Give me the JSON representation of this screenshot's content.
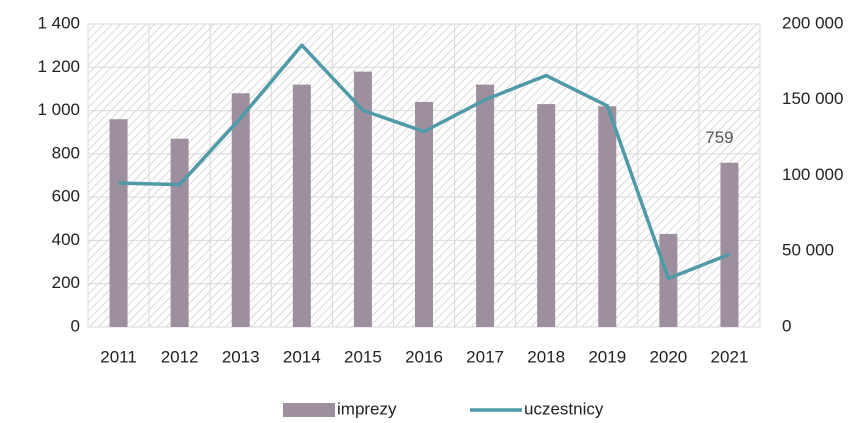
{
  "chart_data": {
    "type": "bar-line",
    "categories": [
      "2011",
      "2012",
      "2013",
      "2014",
      "2015",
      "2016",
      "2017",
      "2018",
      "2019",
      "2020",
      "2021"
    ],
    "series": [
      {
        "name": "imprezy",
        "type": "bar",
        "color": "#9e8f9f",
        "values": [
          960,
          870,
          1080,
          1120,
          1180,
          1040,
          1120,
          1030,
          1020,
          430,
          759
        ]
      },
      {
        "name": "uczestnicy",
        "type": "line",
        "axis": "y2",
        "color": "#4f9aa8",
        "values": [
          95000,
          94000,
          138000,
          186000,
          143000,
          129000,
          150000,
          166000,
          146000,
          32000,
          48000
        ]
      }
    ],
    "labeled_point": 10,
    "ylim": [
      0,
      1400
    ],
    "yticks": [
      0,
      200,
      400,
      600,
      800,
      {
        "value": 1000,
        "label": "1 000"
      },
      {
        "value": 1200,
        "label": "1 200"
      },
      {
        "value": 1400,
        "label": "1 400"
      }
    ],
    "y2lim": [
      0,
      200000
    ],
    "y2ticks": [
      0,
      {
        "value": 50000,
        "label": "50 000"
      },
      {
        "value": 100000,
        "label": "100 000"
      },
      {
        "value": 150000,
        "label": "150 000"
      },
      {
        "value": 200000,
        "label": "200 000"
      }
    ],
    "grid": true,
    "legend": "bottom"
  }
}
